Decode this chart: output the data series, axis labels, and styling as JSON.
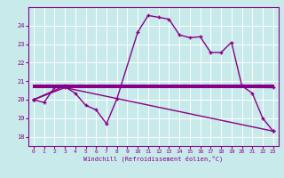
{
  "xlabel": "Windchill (Refroidissement éolien,°C)",
  "background_color": "#c8eaea",
  "grid_color": "#b0d8d8",
  "line_color": "#880088",
  "xlim": [
    -0.5,
    23.5
  ],
  "ylim": [
    17.5,
    25.0
  ],
  "yticks": [
    18,
    19,
    20,
    21,
    22,
    23,
    24
  ],
  "xticks": [
    0,
    1,
    2,
    3,
    4,
    5,
    6,
    7,
    8,
    9,
    10,
    11,
    12,
    13,
    14,
    15,
    16,
    17,
    18,
    19,
    20,
    21,
    22,
    23
  ],
  "series1_x": [
    0,
    1,
    2,
    3,
    4,
    5,
    6,
    7,
    8,
    10,
    11,
    12,
    13,
    14,
    15,
    16,
    17,
    18,
    19,
    20,
    21,
    22,
    23
  ],
  "series1_y": [
    20.0,
    19.85,
    20.65,
    20.7,
    20.35,
    19.7,
    19.45,
    18.7,
    20.05,
    23.65,
    24.55,
    24.45,
    24.35,
    23.5,
    23.35,
    23.4,
    22.55,
    22.55,
    23.1,
    20.75,
    20.35,
    19.0,
    18.3
  ],
  "series2_x": [
    0,
    3,
    23
  ],
  "series2_y": [
    20.0,
    20.75,
    20.65
  ],
  "series3_x": [
    0,
    3,
    23
  ],
  "series3_y": [
    20.0,
    20.65,
    18.3
  ],
  "line1_x": [
    0,
    23
  ],
  "line1_y": [
    20.65,
    20.65
  ],
  "line2_x": [
    0,
    23
  ],
  "line2_y": [
    20.75,
    20.75
  ]
}
